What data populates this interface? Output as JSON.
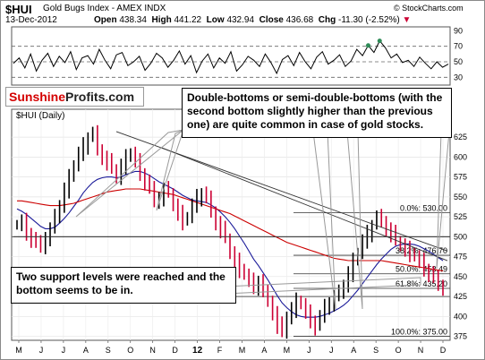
{
  "header": {
    "symbol": "$HUI",
    "name": "Gold Bugs Index - AMEX INDX",
    "date": "13-Dec-2012",
    "open_label": "Open",
    "open": "438.34",
    "high_label": "High",
    "high": "441.22",
    "low_label": "Low",
    "low": "432.94",
    "close_label": "Close",
    "close": "436.68",
    "chg_label": "Chg",
    "chg": "-11.30 (-2.52%)",
    "credit": "© StockCharts.com"
  },
  "brand": {
    "part1": "Sunshine",
    "part2": "Profits.com"
  },
  "callouts": {
    "top": "Double-bottoms or semi-double-bottoms (with the second bottom slightly higher than the previous one) are quite common in case of gold stocks.",
    "bottom": "Two support levels were reached and the bottom seems to be in."
  },
  "colors": {
    "price": "#000000",
    "down": "#cc0033",
    "ma50": "#1a1a99",
    "ma200": "#cc0000",
    "rsi": "#000000",
    "ob": "#2e8b57"
  },
  "chart_data": [
    {
      "type": "line",
      "name": "RSI",
      "ylim": [
        20,
        95
      ],
      "y_ticks": [
        30,
        50,
        70,
        90
      ],
      "reference_lines": [
        30,
        50,
        70
      ],
      "values": [
        48,
        55,
        42,
        60,
        38,
        52,
        61,
        44,
        57,
        49,
        63,
        40,
        55,
        58,
        47,
        66,
        52,
        41,
        59,
        62,
        45,
        50,
        57,
        39,
        48,
        61,
        55,
        43,
        52,
        64,
        47,
        58,
        36,
        51,
        60,
        42,
        55,
        48,
        63,
        38,
        46,
        57,
        52,
        44,
        60,
        49,
        35,
        53,
        58,
        45,
        62,
        50,
        41,
        56,
        63,
        47,
        52,
        59,
        44,
        51,
        66,
        58,
        71,
        62,
        77,
        68,
        55,
        60,
        49,
        52,
        44,
        56,
        48,
        41,
        50,
        43,
        47
      ]
    },
    {
      "type": "line",
      "name": "$HUI (Daily)",
      "ylim": [
        370,
        660
      ],
      "y_ticks": [
        375,
        400,
        425,
        450,
        475,
        500,
        525,
        550,
        575,
        600,
        625
      ],
      "x_ticks": [
        "M",
        "J",
        "J",
        "A",
        "S",
        "O",
        "N",
        "D",
        "12",
        "F",
        "M",
        "A",
        "M",
        "J",
        "J",
        "A",
        "S",
        "O",
        "N",
        "D"
      ],
      "reference_lines": [
        500,
        425
      ],
      "fibonacci": [
        {
          "label": "0.0%: 530.00",
          "value": 530
        },
        {
          "label": "38.2%: 476.70",
          "value": 476.7
        },
        {
          "label": "50.0%: 453.49",
          "value": 453.49
        },
        {
          "label": "61.8%: 435.20",
          "value": 435.2
        },
        {
          "label": "100.0%: 375.00",
          "value": 375
        }
      ],
      "series": [
        {
          "name": "$HUI",
          "values": [
            515,
            520,
            505,
            498,
            492,
            488,
            500,
            510,
            525,
            540,
            560,
            575,
            590,
            605,
            615,
            625,
            630,
            610,
            600,
            595,
            585,
            575,
            590,
            600,
            605,
            595,
            580,
            570,
            560,
            545,
            550,
            560,
            555,
            540,
            530,
            520,
            525,
            540,
            550,
            555,
            548,
            532,
            518,
            510,
            498,
            480,
            470,
            460,
            452,
            445,
            438,
            445,
            430,
            420,
            405,
            390,
            380,
            400,
            410,
            420,
            415,
            405,
            395,
            388,
            400,
            412,
            418,
            425,
            430,
            440,
            455,
            470,
            480,
            495,
            505,
            515,
            525,
            520,
            510,
            505,
            495,
            490,
            485,
            480,
            475,
            470,
            460,
            455,
            448,
            440,
            436
          ]
        },
        {
          "name": "MA50",
          "values": [
            535,
            532,
            528,
            523,
            518,
            513,
            510,
            510,
            512,
            517,
            523,
            530,
            538,
            546,
            555,
            562,
            568,
            572,
            574,
            575,
            575,
            574,
            575,
            578,
            580,
            582,
            582,
            580,
            577,
            573,
            569,
            566,
            563,
            560,
            556,
            552,
            549,
            546,
            545,
            544,
            543,
            540,
            536,
            531,
            525,
            518,
            510,
            501,
            492,
            482,
            472,
            464,
            455,
            446,
            436,
            426,
            417,
            411,
            406,
            402,
            400,
            399,
            399,
            399,
            400,
            402,
            404,
            407,
            410,
            414,
            419,
            426,
            433,
            441,
            449,
            457,
            465,
            472,
            478,
            484,
            488,
            490,
            491,
            491,
            490,
            488,
            485,
            482,
            478,
            474,
            470
          ]
        },
        {
          "name": "MA200",
          "values": [
            545,
            545,
            544,
            543,
            542,
            541,
            540,
            539,
            539,
            539,
            540,
            541,
            542,
            544,
            546,
            548,
            550,
            552,
            554,
            556,
            557,
            558,
            559,
            560,
            560,
            560,
            560,
            559,
            558,
            557,
            556,
            555,
            554,
            553,
            551,
            549,
            547,
            545,
            543,
            541,
            539,
            537,
            535,
            533,
            531,
            529,
            526,
            523,
            520,
            517,
            514,
            511,
            508,
            505,
            502,
            499,
            496,
            493,
            491,
            489,
            487,
            485,
            483,
            481,
            479,
            477,
            475,
            473,
            472,
            471,
            470,
            470,
            470,
            470,
            470,
            470,
            470,
            470,
            469,
            468,
            467,
            466,
            465,
            464,
            463,
            462,
            461,
            460,
            459,
            458,
            457
          ]
        }
      ]
    }
  ]
}
